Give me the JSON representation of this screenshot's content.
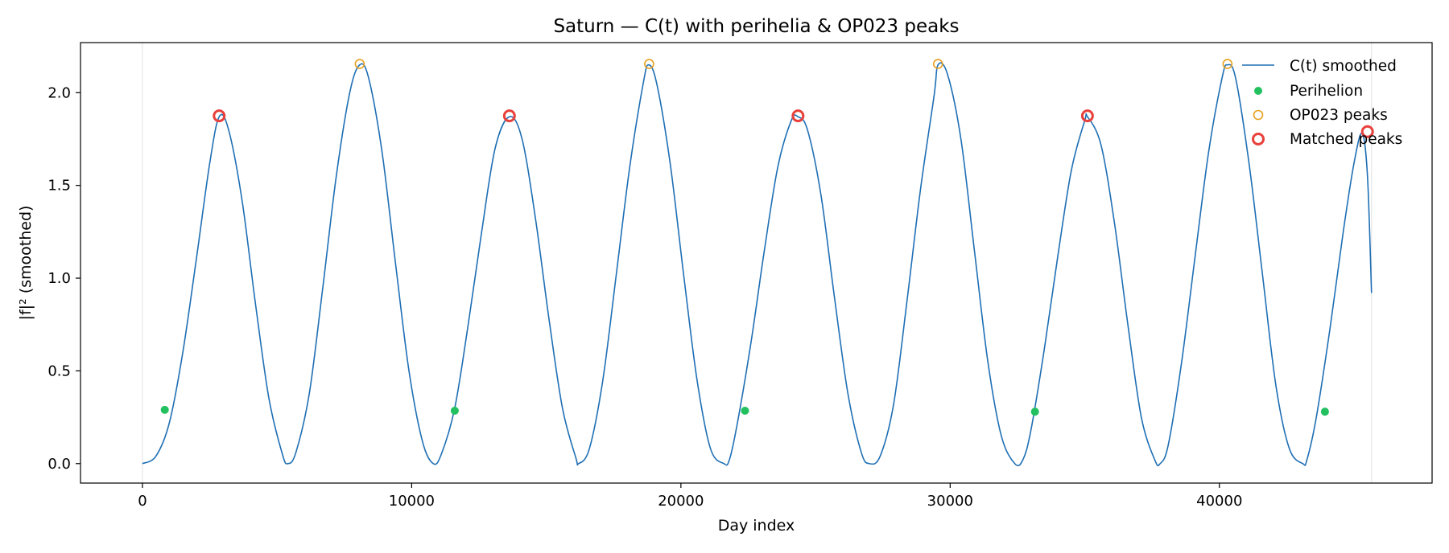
{
  "chart_data": {
    "type": "line",
    "title": "Saturn — C(t) with perihelia & OP023 peaks",
    "xlabel": "Day index",
    "ylabel": "|f|² (smoothed)",
    "xlim": [
      -2300,
      47900
    ],
    "ylim": [
      -0.105,
      2.27
    ],
    "xticks": [
      0,
      10000,
      20000,
      30000,
      40000
    ],
    "xtick_labels": [
      "0",
      "10000",
      "20000",
      "30000",
      "40000"
    ],
    "yticks": [
      0.0,
      0.5,
      1.0,
      1.5,
      2.0
    ],
    "ytick_labels": [
      "0.0",
      "0.5",
      "1.0",
      "1.5",
      "2.0"
    ],
    "vertical_reference_lines": [
      0,
      45650
    ],
    "grid": false,
    "legend_position": "upper right",
    "colors": {
      "line": "#1f6fb4",
      "perihelion": "#22c05f",
      "op023": "#e8a020",
      "matched": "#e8413c",
      "refline": "#e0e0e0"
    },
    "series": [
      {
        "name": "C(t) smoothed",
        "kind": "line",
        "x": [
          0,
          500,
          1000,
          1500,
          2000,
          2500,
          2850,
          3200,
          3700,
          4200,
          4700,
          5200,
          5400,
          5700,
          6200,
          6700,
          7200,
          7700,
          8070,
          8400,
          8900,
          9400,
          9900,
          10400,
          10800,
          11100,
          11600,
          12100,
          12600,
          13100,
          13630,
          14100,
          14600,
          15100,
          15600,
          16100,
          16200,
          16600,
          17100,
          17600,
          18100,
          18600,
          18800,
          19100,
          19600,
          20100,
          20600,
          21100,
          21600,
          21800,
          22100,
          22600,
          23100,
          23600,
          24100,
          24350,
          24700,
          25200,
          25700,
          26200,
          26700,
          27000,
          27400,
          27900,
          28400,
          28900,
          29400,
          29550,
          29900,
          30400,
          30900,
          31400,
          31900,
          32400,
          32700,
          33000,
          33500,
          34000,
          34500,
          35000,
          35100,
          35600,
          36100,
          36600,
          37100,
          37600,
          37800,
          38100,
          38600,
          39100,
          39600,
          40100,
          40300,
          40600,
          41100,
          41600,
          42100,
          42600,
          43100,
          43250,
          43600,
          44100,
          44600,
          45000,
          45300,
          45500,
          45650
        ],
        "y": [
          0.0,
          0.04,
          0.22,
          0.6,
          1.1,
          1.62,
          1.87,
          1.8,
          1.42,
          0.86,
          0.35,
          0.05,
          0.0,
          0.06,
          0.38,
          0.95,
          1.55,
          2.0,
          2.15,
          2.08,
          1.68,
          1.08,
          0.5,
          0.12,
          0.0,
          0.05,
          0.3,
          0.75,
          1.25,
          1.7,
          1.87,
          1.75,
          1.32,
          0.78,
          0.3,
          0.03,
          0.0,
          0.08,
          0.45,
          1.02,
          1.6,
          2.05,
          2.15,
          2.05,
          1.62,
          1.02,
          0.45,
          0.08,
          0.0,
          0.02,
          0.22,
          0.65,
          1.15,
          1.6,
          1.85,
          1.87,
          1.8,
          1.45,
          0.9,
          0.38,
          0.06,
          0.0,
          0.04,
          0.32,
          0.88,
          1.48,
          1.98,
          2.15,
          2.1,
          1.75,
          1.15,
          0.55,
          0.15,
          0.0,
          0.02,
          0.18,
          0.62,
          1.12,
          1.58,
          1.85,
          1.87,
          1.72,
          1.3,
          0.75,
          0.25,
          0.02,
          0.0,
          0.1,
          0.55,
          1.12,
          1.68,
          2.08,
          2.15,
          2.08,
          1.62,
          1.02,
          0.42,
          0.08,
          0.0,
          0.02,
          0.25,
          0.72,
          1.25,
          1.62,
          1.78,
          1.55,
          0.92
        ]
      },
      {
        "name": "Perihelion",
        "kind": "scatter",
        "x": [
          830,
          11600,
          22380,
          33150,
          43920
        ],
        "y": [
          0.29,
          0.285,
          0.285,
          0.28,
          0.28
        ]
      },
      {
        "name": "OP023 peaks",
        "kind": "scatter-hollow",
        "x": [
          8070,
          18820,
          29550,
          40300
        ],
        "y": [
          2.155,
          2.155,
          2.155,
          2.155
        ]
      },
      {
        "name": "Matched peaks",
        "kind": "scatter-hollow-thick",
        "x": [
          2850,
          13630,
          24350,
          35100,
          45500
        ],
        "y": [
          1.875,
          1.875,
          1.875,
          1.875,
          1.79
        ]
      }
    ]
  }
}
